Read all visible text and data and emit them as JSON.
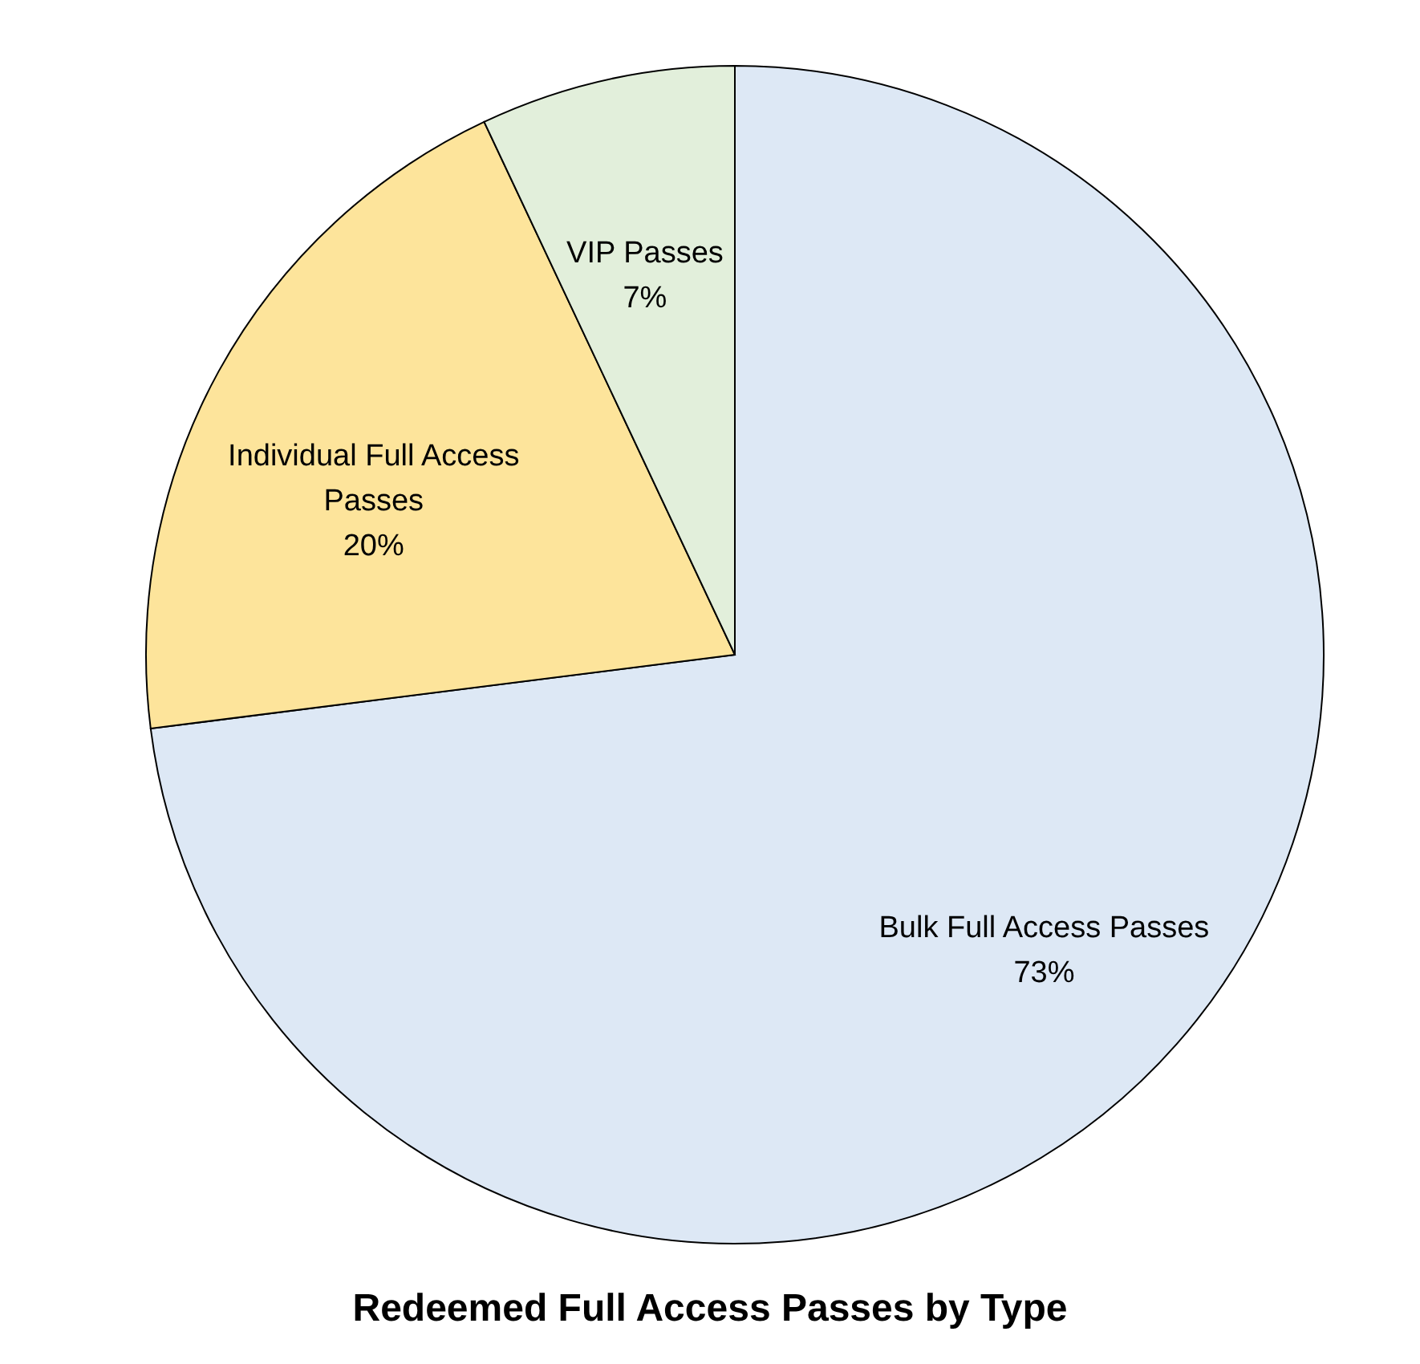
{
  "chart_data": {
    "type": "pie",
    "title": "Redeemed Full Access Passes by Type",
    "categories": [
      "Bulk Full Access Passes",
      "Individual Full Access Passes",
      "VIP Passes"
    ],
    "values": [
      73,
      20,
      7
    ],
    "value_labels": [
      "73%",
      "20%",
      "7%"
    ],
    "colors": [
      "#dde8f5",
      "#fde49b",
      "#e2efdb"
    ]
  }
}
